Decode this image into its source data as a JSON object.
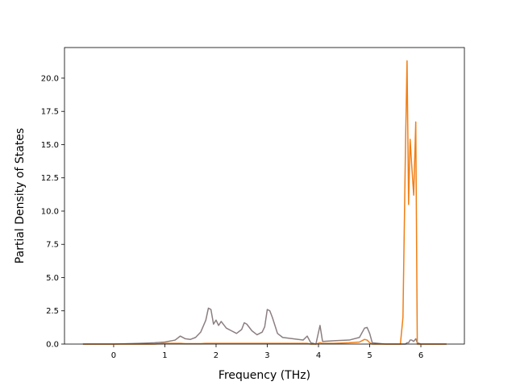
{
  "chart_data": {
    "type": "line",
    "xlabel": "Frequency (THz)",
    "ylabel": "Partial Density of States",
    "x": [
      -0.6,
      0,
      0.5,
      0.8,
      1.0,
      1.2,
      1.3,
      1.4,
      1.5,
      1.6,
      1.7,
      1.8,
      1.85,
      1.9,
      1.95,
      2.0,
      2.05,
      2.1,
      2.2,
      2.3,
      2.4,
      2.5,
      2.55,
      2.6,
      2.7,
      2.8,
      2.9,
      2.95,
      3.0,
      3.05,
      3.1,
      3.2,
      3.3,
      3.5,
      3.7,
      3.78,
      3.85,
      3.95,
      4.03,
      4.08,
      4.3,
      4.6,
      4.8,
      4.9,
      4.95,
      5.0,
      5.05,
      5.3,
      5.6,
      5.65,
      5.7,
      5.73,
      5.76,
      5.79,
      5.82,
      5.86,
      5.9,
      5.93,
      6.0,
      6.5
    ],
    "series": [
      {
        "color": "#8b7e80",
        "values": [
          0,
          0,
          0.05,
          0.1,
          0.15,
          0.3,
          0.6,
          0.4,
          0.35,
          0.5,
          0.9,
          1.8,
          2.7,
          2.6,
          1.5,
          1.8,
          1.4,
          1.7,
          1.2,
          1.0,
          0.8,
          1.1,
          1.6,
          1.5,
          1.0,
          0.7,
          0.9,
          1.3,
          2.6,
          2.5,
          2.0,
          0.8,
          0.5,
          0.4,
          0.3,
          0.6,
          0.1,
          0,
          1.4,
          0.2,
          0.25,
          0.3,
          0.5,
          1.2,
          1.25,
          0.8,
          0.1,
          0,
          0,
          0,
          0,
          0.1,
          0.1,
          0.3,
          0.3,
          0.2,
          0.4,
          0.1,
          0,
          0
        ]
      },
      {
        "color": "#f07f16",
        "values": [
          0,
          0,
          0,
          0,
          0.05,
          0.05,
          0.05,
          0.03,
          0.03,
          0.03,
          0.03,
          0.05,
          0.05,
          0.05,
          0.05,
          0.05,
          0.05,
          0.05,
          0.05,
          0.05,
          0.05,
          0.05,
          0.05,
          0.05,
          0.05,
          0.05,
          0.05,
          0.05,
          0.05,
          0.05,
          0.05,
          0.05,
          0.05,
          0.05,
          0.05,
          0.05,
          0,
          0,
          0.1,
          0.05,
          0.05,
          0.1,
          0.15,
          0.35,
          0.3,
          0.1,
          0,
          0,
          0,
          2,
          15,
          21.3,
          10.5,
          15.4,
          13.5,
          11.2,
          16.7,
          0,
          0,
          0
        ]
      }
    ],
    "xlim": [
      -0.96,
      6.85
    ],
    "xticks": [
      0,
      1,
      2,
      3,
      4,
      5,
      6
    ],
    "ylim": [
      0,
      22.3
    ],
    "yticks": [
      {
        "value": 0,
        "label": "0.0"
      },
      {
        "value": 2.5,
        "label": "2.5"
      },
      {
        "value": 5,
        "label": "5.0"
      },
      {
        "value": 7.5,
        "label": "7.5"
      },
      {
        "value": 10,
        "label": "10.0"
      },
      {
        "value": 12.5,
        "label": "12.5"
      },
      {
        "value": 15,
        "label": "15.0"
      },
      {
        "value": 17.5,
        "label": "17.5"
      },
      {
        "value": 20,
        "label": "20.0"
      }
    ]
  }
}
